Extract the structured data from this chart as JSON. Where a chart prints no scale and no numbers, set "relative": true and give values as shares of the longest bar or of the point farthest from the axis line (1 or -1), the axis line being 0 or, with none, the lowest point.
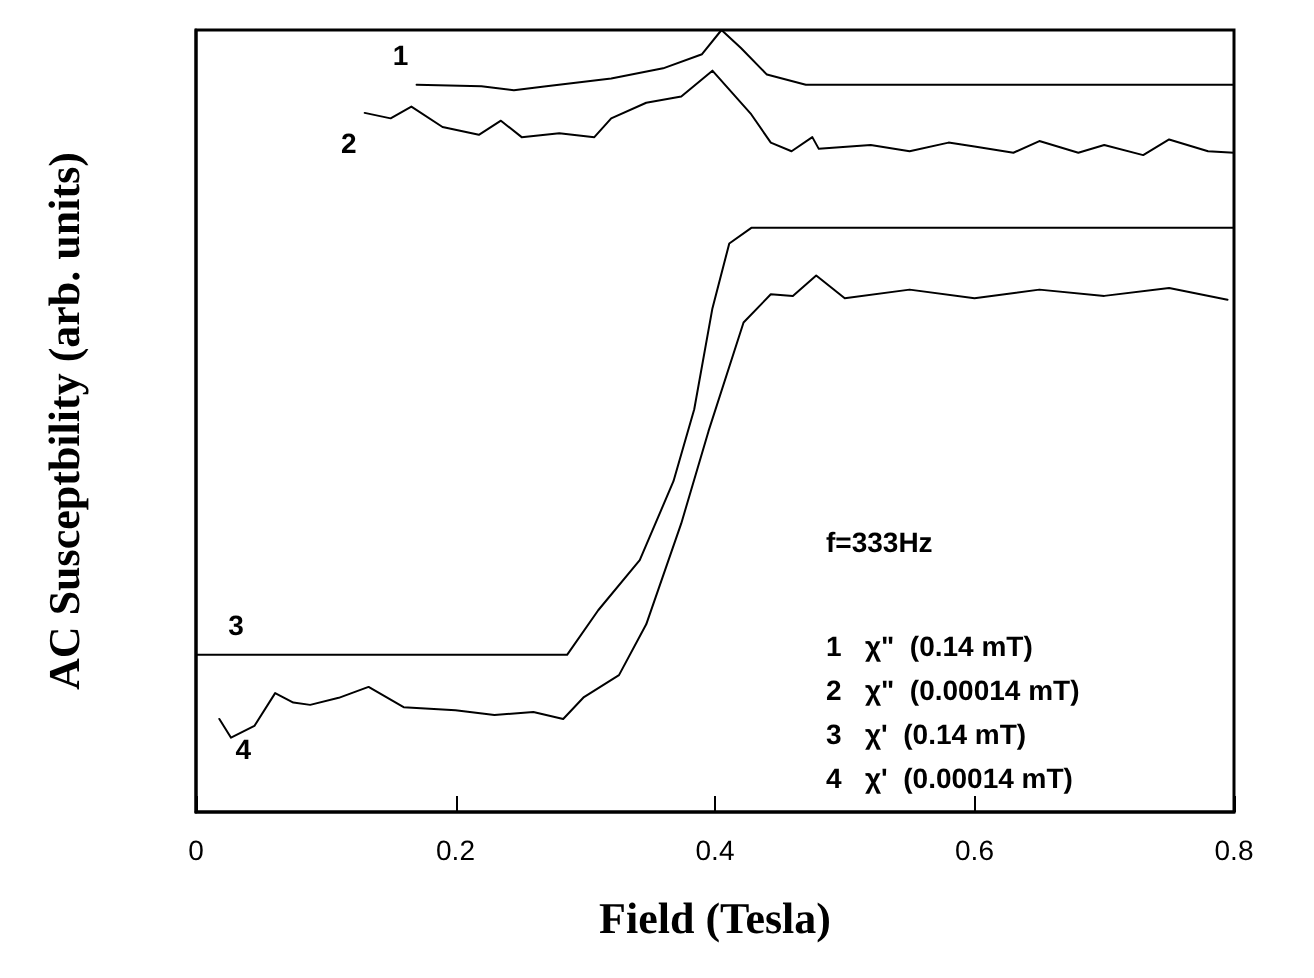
{
  "chart_data": {
    "type": "line",
    "relative": true,
    "xlabel": "Field (Tesla)",
    "ylabel": "AC Susceptbility (arb. units)",
    "xlim": [
      0,
      0.8
    ],
    "xticks": [
      0,
      0.2,
      0.4,
      0.6,
      0.8
    ],
    "grid": false,
    "legend": false,
    "marker": "none",
    "line_style": "solid",
    "annotations": [
      "f=333Hz",
      "1   χ\"  (0.14 mT)",
      "2   χ\"  (0.00014 mT)",
      "3   χ'  (0.14 mT)",
      "4   χ'  (0.00014 mT)"
    ],
    "series": [
      {
        "name": "1",
        "color": "#000000",
        "x": [
          0.17,
          0.22,
          0.245,
          0.27,
          0.32,
          0.36,
          0.39,
          0.405,
          0.42,
          0.44,
          0.47,
          0.6,
          0.8
        ],
        "values": [
          0.93,
          0.928,
          0.923,
          0.928,
          0.938,
          0.951,
          0.969,
          1,
          0.977,
          0.943,
          0.93,
          0.93,
          0.93
        ]
      },
      {
        "name": "2",
        "color": "#000000",
        "x": [
          0.13,
          0.15,
          0.166,
          0.19,
          0.218,
          0.235,
          0.251,
          0.28,
          0.307,
          0.32,
          0.347,
          0.374,
          0.398,
          0.428,
          0.443,
          0.459,
          0.475,
          0.48,
          0.52,
          0.55,
          0.58,
          0.6,
          0.63,
          0.65,
          0.68,
          0.7,
          0.73,
          0.75,
          0.78,
          0.8
        ],
        "values": [
          0.894,
          0.887,
          0.902,
          0.876,
          0.866,
          0.884,
          0.863,
          0.868,
          0.863,
          0.887,
          0.907,
          0.915,
          0.948,
          0.892,
          0.856,
          0.845,
          0.863,
          0.848,
          0.853,
          0.845,
          0.856,
          0.851,
          0.843,
          0.858,
          0.843,
          0.853,
          0.84,
          0.86,
          0.845,
          0.843
        ]
      },
      {
        "name": "3",
        "color": "#000000",
        "x": [
          0,
          0.286,
          0.31,
          0.342,
          0.368,
          0.384,
          0.398,
          0.411,
          0.428,
          0.8
        ],
        "values": [
          0.201,
          0.201,
          0.258,
          0.322,
          0.423,
          0.515,
          0.644,
          0.727,
          0.747,
          0.747
        ]
      },
      {
        "name": "4",
        "color": "#000000",
        "x": [
          0.018,
          0.027,
          0.045,
          0.061,
          0.075,
          0.088,
          0.11,
          0.133,
          0.16,
          0.2,
          0.23,
          0.26,
          0.283,
          0.299,
          0.326,
          0.347,
          0.374,
          0.395,
          0.422,
          0.443,
          0.46,
          0.478,
          0.5,
          0.55,
          0.6,
          0.65,
          0.7,
          0.75,
          0.795
        ],
        "values": [
          0.119,
          0.095,
          0.11,
          0.152,
          0.14,
          0.137,
          0.146,
          0.16,
          0.134,
          0.13,
          0.124,
          0.128,
          0.119,
          0.147,
          0.175,
          0.24,
          0.369,
          0.487,
          0.626,
          0.662,
          0.66,
          0.686,
          0.657,
          0.668,
          0.657,
          0.668,
          0.66,
          0.67,
          0.655
        ]
      }
    ]
  }
}
